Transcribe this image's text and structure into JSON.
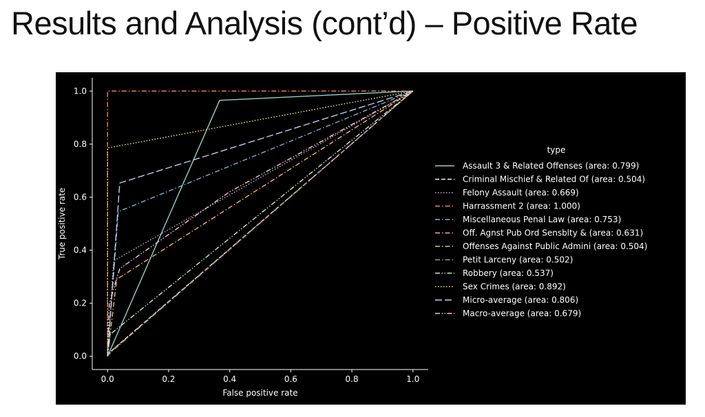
{
  "slide": {
    "title": "Results and Analysis (cont’d) – Positive Rate"
  },
  "chart_data": {
    "type": "line",
    "xlabel": "False positive rate",
    "ylabel": "True positive rate",
    "xlim": [
      -0.05,
      1.05
    ],
    "ylim": [
      -0.05,
      1.05
    ],
    "xticks": [
      "0.0",
      "0.2",
      "0.4",
      "0.6",
      "0.8",
      "1.0"
    ],
    "yticks": [
      "0.0",
      "0.2",
      "0.4",
      "0.6",
      "0.8",
      "1.0"
    ],
    "grid": false,
    "background": "#000000",
    "legend": {
      "title": "type",
      "placement": "right"
    },
    "series": [
      {
        "name": "Assault 3 & Related Offenses (area: 0.799)",
        "color": "#8dd3c7",
        "dash": "solid",
        "points": [
          [
            0,
            0
          ],
          [
            0.367,
            0.965
          ],
          [
            1,
            1
          ]
        ]
      },
      {
        "name": "Criminal Mischief & Related Of (area: 0.504)",
        "color": "#feffb3",
        "dash": "dashed",
        "points": [
          [
            0,
            0
          ],
          [
            0.009,
            0.017
          ],
          [
            1,
            1
          ]
        ]
      },
      {
        "name": "Felony Assault (area: 0.669)",
        "color": "#bfbbd9",
        "dash": "dotted",
        "points": [
          [
            0,
            0
          ],
          [
            0.02,
            0.36
          ],
          [
            1,
            1
          ]
        ]
      },
      {
        "name": "Harrassment 2 (area: 1.000)",
        "color": "#fa8174",
        "dash": "dashdot",
        "points": [
          [
            0,
            0
          ],
          [
            0,
            1
          ],
          [
            1,
            1
          ]
        ]
      },
      {
        "name": "Miscellaneous Penal Law (area: 0.753)",
        "color": "#81b1d2",
        "dash": "dashdot",
        "points": [
          [
            0,
            0
          ],
          [
            0.035,
            0.545
          ],
          [
            1,
            1
          ]
        ]
      },
      {
        "name": "Off. Agnst Pub Ord Sensblty & (area: 0.631)",
        "color": "#fdb462",
        "dash": "dashdot",
        "points": [
          [
            0,
            0
          ],
          [
            0.03,
            0.29
          ],
          [
            1,
            1
          ]
        ]
      },
      {
        "name": "Offenses Against Public Admini (area: 0.504)",
        "color": "#b3de69",
        "dash": "dashdot",
        "points": [
          [
            0,
            0
          ],
          [
            0.005,
            0.012
          ],
          [
            1,
            1
          ]
        ]
      },
      {
        "name": "Petit Larceny (area: 0.502)",
        "color": "#bc82bd",
        "dash": "dashdot",
        "points": [
          [
            0,
            0
          ],
          [
            0.01,
            0.014
          ],
          [
            1,
            1
          ]
        ]
      },
      {
        "name": "Robbery (area: 0.537)",
        "color": "#ccebc4",
        "dash": "dashdotdot",
        "points": [
          [
            0,
            0
          ],
          [
            0.009,
            0.083
          ],
          [
            1,
            1
          ]
        ]
      },
      {
        "name": "Sex Crimes (area: 0.892)",
        "color": "#ffed6f",
        "dash": "dotted",
        "points": [
          [
            0,
            0
          ],
          [
            0,
            0.785
          ],
          [
            1,
            1
          ]
        ]
      },
      {
        "name": "Micro-average (area: 0.806)",
        "color": "#b8d1f0",
        "dash": "longdash",
        "points": [
          [
            0,
            0
          ],
          [
            0.04,
            0.653
          ],
          [
            1,
            1
          ]
        ]
      },
      {
        "name": "Macro-average (area: 0.679)",
        "color": "#ffc7cf",
        "dash": "dashdotdot",
        "points": [
          [
            0,
            0
          ],
          [
            0.006,
            0.2
          ],
          [
            0.04,
            0.33
          ],
          [
            0.4,
            0.62
          ],
          [
            1,
            1
          ]
        ]
      }
    ]
  }
}
